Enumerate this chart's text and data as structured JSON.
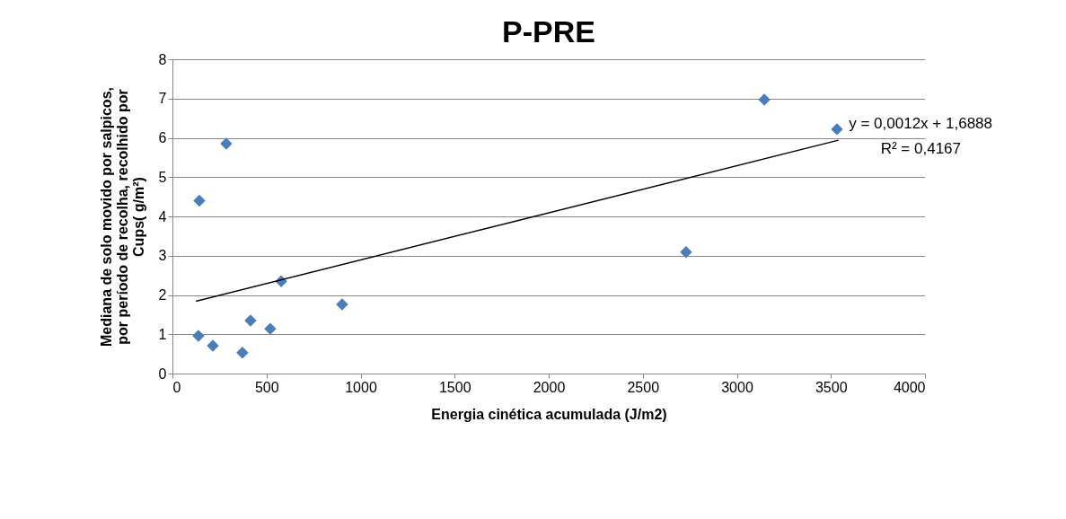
{
  "chart_data": {
    "type": "scatter",
    "title": "P-PRE",
    "xlabel": "Energia cinética acumulada (J/m2)",
    "ylabel": "Mediana de solo movido por salpicos, por período de recolha, recolhido por Cups( g/m²)",
    "x": [
      143,
      286,
      138,
      215,
      372,
      415,
      520,
      578,
      902,
      2730,
      3146,
      3532
    ],
    "series": [
      {
        "color": "#4a7ebb",
        "values": [
          4.4,
          5.85,
          0.96,
          0.71,
          0.53,
          1.35,
          1.14,
          2.35,
          1.76,
          3.09,
          6.97,
          6.22
        ]
      },
      {
        "type": "line",
        "marker": "none",
        "color": "#000000",
        "x": [
          125,
          3540
        ],
        "values": [
          1.84,
          5.94
        ]
      }
    ],
    "annotations": [
      "y = 0,0012x + 1,6888",
      "R² = 0,4167"
    ],
    "xlim": [
      0,
      4000
    ],
    "xticks": [
      0,
      500,
      1000,
      1500,
      2000,
      2500,
      3000,
      3500,
      4000
    ],
    "ylim": [
      0,
      8
    ],
    "yticks": [
      0,
      1,
      2,
      3,
      4,
      5,
      6,
      7,
      8
    ],
    "grid": "y",
    "marker": "diamond"
  }
}
